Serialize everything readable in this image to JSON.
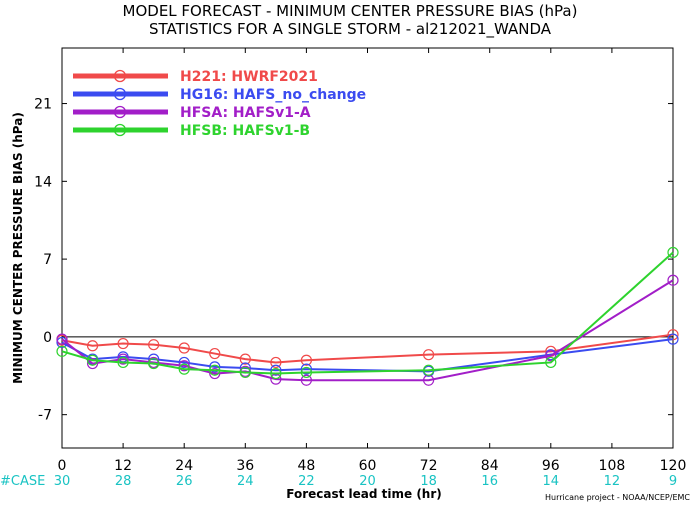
{
  "chart_data": {
    "type": "line",
    "title": "MODEL FORECAST - MINIMUM CENTER PRESSURE BIAS (hPa)",
    "subtitle": "STATISTICS FOR A SINGLE STORM - al212021_WANDA",
    "xlabel": "Forecast lead time (hr)",
    "ylabel": "MINIMUM CENTER PRESSURE BIAS (hPa)",
    "xlim": [
      0,
      120
    ],
    "ylim": [
      -10,
      26
    ],
    "xticks": [
      "0",
      "12",
      "24",
      "36",
      "48",
      "60",
      "72",
      "84",
      "96",
      "108",
      "120"
    ],
    "yticks": [
      "-7",
      "0",
      "7",
      "14",
      "21"
    ],
    "ytick_values": [
      -7,
      0,
      7,
      14,
      21
    ],
    "grid": false,
    "legend_position": "top-left",
    "case_label": "#CASE",
    "case_counts": [
      "30",
      "28",
      "26",
      "24",
      "22",
      "20",
      "18",
      "16",
      "14",
      "12",
      "9"
    ],
    "credit": "Hurricane project - NOAA/NCEP/EMC",
    "series": [
      {
        "name": "H221: HWRF2021",
        "color": "#f04a4a",
        "x": [
          0,
          6,
          12,
          18,
          24,
          30,
          36,
          42,
          48,
          72,
          96,
          120
        ],
        "y": [
          -0.3,
          -0.8,
          -0.6,
          -0.7,
          -1.0,
          -1.5,
          -2.0,
          -2.3,
          -2.1,
          -1.6,
          -1.3,
          0.2
        ]
      },
      {
        "name": "HG16: HAFS_no_change",
        "color": "#3b4bf0",
        "x": [
          0,
          6,
          12,
          18,
          24,
          30,
          36,
          42,
          48,
          72,
          96,
          120
        ],
        "y": [
          -0.5,
          -2.0,
          -1.8,
          -2.0,
          -2.3,
          -2.7,
          -2.8,
          -3.0,
          -2.9,
          -3.1,
          -1.6,
          -0.2
        ]
      },
      {
        "name": "HFSA: HAFSv1-A",
        "color": "#a21ec8",
        "x": [
          0,
          6,
          12,
          18,
          24,
          30,
          36,
          42,
          48,
          72,
          96,
          120
        ],
        "y": [
          -0.2,
          -2.4,
          -2.0,
          -2.3,
          -2.6,
          -3.3,
          -3.1,
          -3.8,
          -3.9,
          -3.9,
          -1.7,
          5.1
        ]
      },
      {
        "name": "HFSB: HAFSv1-B",
        "color": "#2ed32e",
        "x": [
          0,
          6,
          12,
          18,
          24,
          30,
          36,
          42,
          48,
          72,
          96,
          120
        ],
        "y": [
          -1.3,
          -2.1,
          -2.3,
          -2.4,
          -2.9,
          -3.0,
          -3.2,
          -3.3,
          -3.2,
          -3.0,
          -2.3,
          7.6
        ]
      }
    ]
  }
}
